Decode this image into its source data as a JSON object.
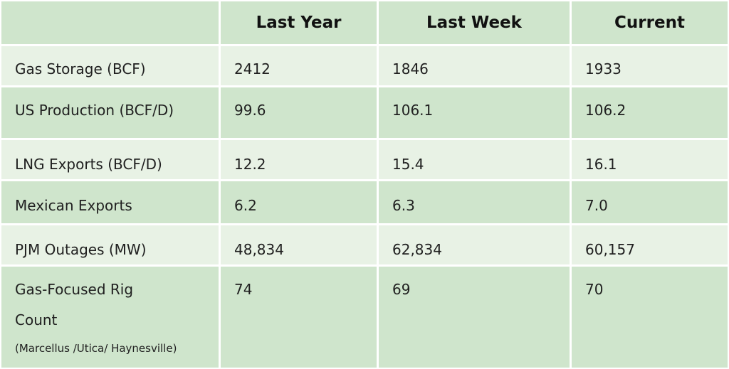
{
  "headers": [
    "",
    "Last Year",
    "Last Week",
    "Current"
  ],
  "rows": [
    {
      "label": "Gas Storage (BCF)",
      "last_year": "2412",
      "last_week": "1846",
      "current": "1933"
    },
    {
      "label": "US Production (BCF/D)",
      "last_year": "99.6",
      "last_week": "106.1",
      "current": "106.2"
    },
    {
      "label": "LNG Exports (BCF/D)",
      "last_year": "12.2",
      "last_week": "15.4",
      "current": "16.1"
    },
    {
      "label": "Mexican Exports",
      "last_year": "6.2",
      "last_week": "6.3",
      "current": "7.0"
    },
    {
      "label": "PJM Outages (MW)",
      "last_year": "48,834",
      "last_week": "62,834",
      "current": "60,157"
    },
    {
      "label_line1": "Gas-Focused Rig",
      "label_line2": "Count",
      "label_note": "(Marcellus /Utica/ Haynesville)",
      "last_year": "74",
      "last_week": "69",
      "current": "70"
    }
  ],
  "colors": {
    "header_bg": "#cfe5cc",
    "row_light": "#e8f2e5",
    "row_dark": "#cfe5cc",
    "border": "#ffffff"
  }
}
